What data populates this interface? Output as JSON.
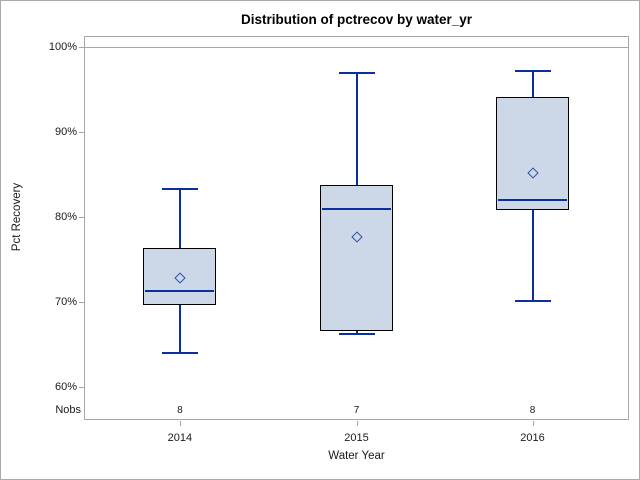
{
  "title": "Distribution of pctrecov by water_yr",
  "axes": {
    "y_label": "Pct Recovery",
    "x_label": "Water Year",
    "nobs_label": "Nobs",
    "y_tick_labels": [
      "100%",
      "90%",
      "80%",
      "70%",
      "60%"
    ]
  },
  "chart_data": {
    "type": "boxplot",
    "title": "Distribution of pctrecov by water_yr",
    "xlabel": "Water Year",
    "ylabel": "Pct Recovery",
    "categories": [
      "2014",
      "2015",
      "2016"
    ],
    "series": [
      {
        "category": "2014",
        "min": 64.0,
        "q1": 69.6,
        "median": 71.3,
        "q3": 76.3,
        "max": 83.3,
        "mean": 72.8,
        "nobs": 8
      },
      {
        "category": "2015",
        "min": 66.2,
        "q1": 66.6,
        "median": 80.9,
        "q3": 83.8,
        "max": 96.9,
        "mean": 77.7,
        "nobs": 7
      },
      {
        "category": "2016",
        "min": 70.1,
        "q1": 80.8,
        "median": 82.0,
        "q3": 94.1,
        "max": 97.2,
        "mean": 85.2,
        "nobs": 8
      }
    ],
    "ylim": [
      60,
      100
    ],
    "yticks": [
      100,
      90,
      80,
      70,
      60
    ],
    "tick_format": "percent",
    "reference_line": 100,
    "grid": false,
    "legend": "none",
    "nobs_row": {
      "label": "Nobs",
      "values": [
        8,
        7,
        8
      ]
    }
  },
  "colors": {
    "box_fill": "#ccd7e7",
    "box_border": "#000000",
    "line": "#0a2f9e",
    "mean_marker": "#2a4fae",
    "frame": "#a6a6a6",
    "refline": "#a6a6a6",
    "text": "#1a1a1a"
  }
}
